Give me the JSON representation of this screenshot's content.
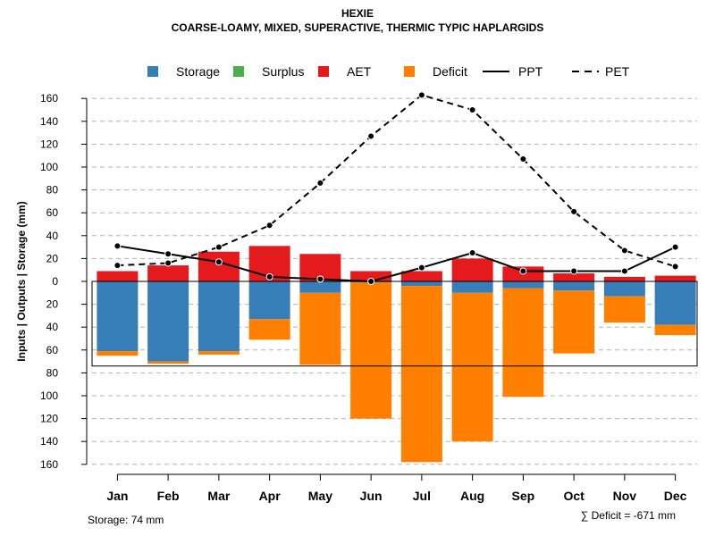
{
  "chart_data": {
    "type": "bar",
    "title": "HEXIE",
    "subtitle": "COARSE-LOAMY, MIXED, SUPERACTIVE, THERMIC TYPIC HAPLARGIDS",
    "ylabel": "Inputs | Outputs | Storage    (mm)",
    "ylim": [
      -160,
      160
    ],
    "y_ticks": [
      160,
      140,
      120,
      100,
      80,
      60,
      40,
      20,
      0,
      20,
      40,
      60,
      80,
      100,
      120,
      140,
      160
    ],
    "grid": true,
    "categories": [
      "Jan",
      "Feb",
      "Mar",
      "Apr",
      "May",
      "Jun",
      "Jul",
      "Aug",
      "Sep",
      "Oct",
      "Nov",
      "Dec"
    ],
    "legend": {
      "placement": "top",
      "items": [
        {
          "label": "Storage",
          "kind": "square",
          "color": "#377eb8"
        },
        {
          "label": "Surplus",
          "kind": "square",
          "color": "#4daf4a"
        },
        {
          "label": "AET",
          "kind": "square",
          "color": "#e41a1c"
        },
        {
          "label": "Deficit",
          "kind": "square",
          "color": "#ff7f00"
        },
        {
          "label": "PPT",
          "kind": "solid-line",
          "color": "#000000"
        },
        {
          "label": "PET",
          "kind": "dashed-line",
          "color": "#000000"
        }
      ]
    },
    "series": [
      {
        "name": "AET",
        "color": "#e41a1c",
        "values": [
          9,
          14,
          26,
          31,
          24,
          9,
          9,
          20,
          13,
          7,
          4,
          5
        ]
      },
      {
        "name": "Storage",
        "color": "#377eb8",
        "values": [
          61,
          70,
          61,
          33,
          10,
          1,
          4,
          10,
          6,
          8,
          13,
          38
        ]
      },
      {
        "name": "Deficit",
        "color": "#ff7f00",
        "values": [
          4,
          2,
          3,
          18,
          63,
          119,
          154,
          130,
          95,
          55,
          23,
          9
        ]
      },
      {
        "name": "Surplus",
        "color": "#4daf4a",
        "values": [
          0,
          0,
          0,
          0,
          0,
          0,
          0,
          0,
          0,
          0,
          0,
          0
        ]
      },
      {
        "name": "PPT",
        "color": "#000000",
        "style": "solid",
        "values": [
          31,
          24,
          17,
          4,
          2,
          0,
          12,
          25,
          9,
          9,
          9,
          30
        ]
      },
      {
        "name": "PET",
        "color": "#000000",
        "style": "dashed",
        "values": [
          14,
          16,
          30,
          49,
          86,
          127,
          163,
          150,
          107,
          61,
          27,
          13
        ]
      }
    ],
    "storage_capacity": 74,
    "footer_storage": "Storage: 74 mm",
    "footer_deficit": "∑ Deficit = -671 mm"
  }
}
